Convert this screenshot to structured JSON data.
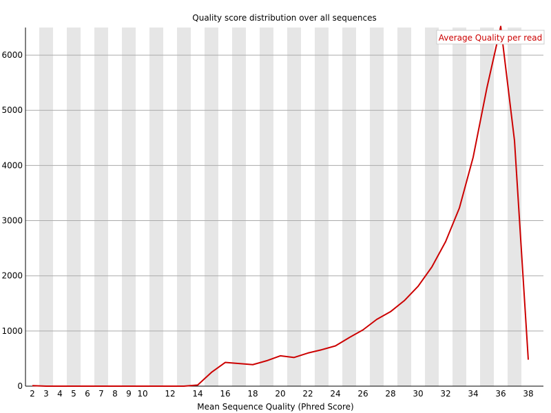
{
  "chart_data": {
    "type": "line",
    "title": "Quality score distribution over all sequences",
    "xlabel": "Mean Sequence Quality (Phred Score)",
    "ylabel": "",
    "x": [
      2,
      3,
      4,
      5,
      6,
      7,
      8,
      9,
      10,
      11,
      12,
      13,
      14,
      15,
      16,
      17,
      18,
      19,
      20,
      21,
      22,
      23,
      24,
      25,
      26,
      27,
      28,
      29,
      30,
      31,
      32,
      33,
      34,
      35,
      36,
      37,
      38
    ],
    "x_tick_labels": [
      "2",
      "3",
      "4",
      "5",
      "6",
      "7",
      "8",
      "9",
      "10",
      "12",
      "14",
      "16",
      "18",
      "20",
      "22",
      "24",
      "26",
      "28",
      "30",
      "32",
      "34",
      "36",
      "38"
    ],
    "x_tick_values": [
      2,
      3,
      4,
      5,
      6,
      7,
      8,
      9,
      10,
      12,
      14,
      16,
      18,
      20,
      22,
      24,
      26,
      28,
      30,
      32,
      34,
      36,
      38
    ],
    "xlim": [
      2,
      38
    ],
    "y_ticks": [
      0,
      1000,
      2000,
      3000,
      4000,
      5000,
      6000
    ],
    "ylim": [
      0,
      6500
    ],
    "grid": "horizontal",
    "alternating_bands": true,
    "band_color": "#e6e6e6",
    "series": [
      {
        "name": "Average Quality per read",
        "color": "#cc0000",
        "values": [
          10,
          0,
          0,
          0,
          0,
          0,
          0,
          0,
          0,
          0,
          0,
          0,
          20,
          250,
          430,
          410,
          390,
          460,
          550,
          520,
          600,
          660,
          730,
          880,
          1020,
          1210,
          1350,
          1550,
          1810,
          2160,
          2620,
          3230,
          4150,
          5410,
          6520,
          4450,
          480
        ]
      }
    ],
    "legend": {
      "position": "top-right",
      "label": "Average Quality per read"
    }
  }
}
